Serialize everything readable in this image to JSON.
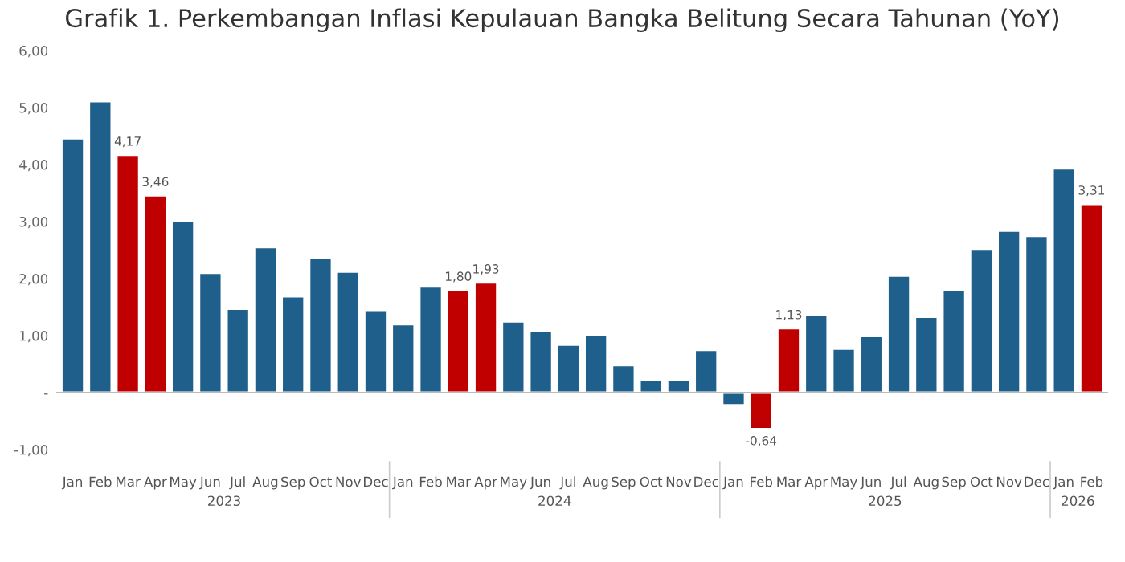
{
  "chart_data": {
    "type": "bar",
    "title": "Grafik 1. Perkembangan Inflasi Kepulauan Bangka Belitung Secara Tahunan (YoY)",
    "categories": [
      "Jan",
      "Feb",
      "Mar",
      "Apr",
      "May",
      "Jun",
      "Jul",
      "Aug",
      "Sep",
      "Oct",
      "Nov",
      "Dec",
      "Jan",
      "Feb",
      "Mar",
      "Apr",
      "May",
      "Jun",
      "Jul",
      "Aug",
      "Sep",
      "Oct",
      "Nov",
      "Dec",
      "Jan",
      "Feb",
      "Mar",
      "Apr",
      "May",
      "Jun",
      "Jul",
      "Aug",
      "Sep",
      "Oct",
      "Nov",
      "Dec",
      "Jan",
      "Feb"
    ],
    "values": [
      4.46,
      5.11,
      4.17,
      3.46,
      3.01,
      2.1,
      1.47,
      2.55,
      1.69,
      2.36,
      2.12,
      1.45,
      1.2,
      1.86,
      1.8,
      1.93,
      1.25,
      1.08,
      0.84,
      1.01,
      0.48,
      0.22,
      0.22,
      0.75,
      -0.22,
      -0.64,
      1.13,
      1.37,
      0.77,
      0.99,
      2.05,
      1.33,
      1.81,
      2.51,
      2.84,
      2.75,
      3.93,
      3.31
    ],
    "colors": [
      "#1f5f8b",
      "#1f5f8b",
      "#c00000",
      "#c00000",
      "#1f5f8b",
      "#1f5f8b",
      "#1f5f8b",
      "#1f5f8b",
      "#1f5f8b",
      "#1f5f8b",
      "#1f5f8b",
      "#1f5f8b",
      "#1f5f8b",
      "#1f5f8b",
      "#c00000",
      "#c00000",
      "#1f5f8b",
      "#1f5f8b",
      "#1f5f8b",
      "#1f5f8b",
      "#1f5f8b",
      "#1f5f8b",
      "#1f5f8b",
      "#1f5f8b",
      "#1f5f8b",
      "#c00000",
      "#c00000",
      "#1f5f8b",
      "#1f5f8b",
      "#1f5f8b",
      "#1f5f8b",
      "#1f5f8b",
      "#1f5f8b",
      "#1f5f8b",
      "#1f5f8b",
      "#1f5f8b",
      "#1f5f8b",
      "#c00000"
    ],
    "value_labels": [
      null,
      null,
      "4,17",
      "3,46",
      null,
      null,
      null,
      null,
      null,
      null,
      null,
      null,
      null,
      null,
      "1,80",
      "1,93",
      null,
      null,
      null,
      null,
      null,
      null,
      null,
      null,
      null,
      "-0,64",
      "1,13",
      null,
      null,
      null,
      null,
      null,
      null,
      null,
      null,
      null,
      null,
      "3,31"
    ],
    "ylim": [
      -1,
      6
    ],
    "yticks": [
      {
        "value": 6,
        "label": "6,00"
      },
      {
        "value": 5,
        "label": "5,00"
      },
      {
        "value": 4,
        "label": "4,00"
      },
      {
        "value": 3,
        "label": "3,00"
      },
      {
        "value": 2,
        "label": "2,00"
      },
      {
        "value": 1,
        "label": "1,00"
      },
      {
        "value": 0,
        "label": "-"
      },
      {
        "value": -1,
        "label": "-1,00"
      }
    ],
    "annotations": [
      "2023",
      "2024",
      "2025",
      "2026"
    ],
    "ref_lines": [
      {
        "axis": "y",
        "value": 0,
        "color": "#bbbbbb"
      }
    ],
    "legend": false
  }
}
